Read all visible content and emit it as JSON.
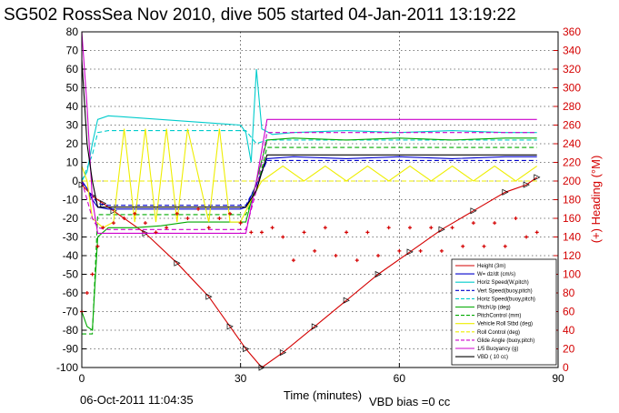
{
  "chart_data": {
    "type": "line",
    "title": "SG502 RossSea Nov 2010, dive 505 started 04-Jan-2011 13:19:22",
    "xlabel": "Time (minutes)",
    "ylabel": "",
    "ylabel_right": "(+) Heading (°M)",
    "xlim": [
      0,
      90
    ],
    "ylim": [
      -100,
      80
    ],
    "ylim_right": [
      0,
      360
    ],
    "xticks": [
      "0",
      "30",
      "60",
      "90"
    ],
    "yticks": [
      "-100",
      "-90",
      "-80",
      "-70",
      "-60",
      "-50",
      "-40",
      "-30",
      "-20",
      "-10",
      "0",
      "10",
      "20",
      "30",
      "40",
      "50",
      "60",
      "70",
      "80"
    ],
    "yticks_right": [
      "0",
      "20",
      "40",
      "60",
      "80",
      "100",
      "120",
      "140",
      "160",
      "180",
      "200",
      "220",
      "240",
      "260",
      "280",
      "300",
      "320",
      "340",
      "360"
    ],
    "grid": true,
    "legend_position": "bottom-right",
    "footer_left": "06-Oct-2011 11:04:35",
    "footer_right": "VBD bias =0 cc",
    "series": [
      {
        "name": "Height (3m)",
        "color": "#d40000",
        "style": "solid",
        "x": [
          0,
          2,
          4,
          6,
          12,
          18,
          24,
          28,
          31,
          34,
          38,
          44,
          50,
          56,
          62,
          68,
          74,
          80,
          84,
          86
        ],
        "y": [
          -2,
          -8,
          -12,
          -16,
          -28,
          -44,
          -62,
          -78,
          -90,
          -100,
          -92,
          -78,
          -64,
          -50,
          -38,
          -26,
          -16,
          -6,
          -2,
          2
        ]
      },
      {
        "name": "W= dz/dt (cm/s)",
        "color": "#0000cc",
        "style": "solid",
        "x": [
          0,
          1,
          2,
          3,
          5,
          10,
          20,
          30,
          31,
          33,
          35,
          40,
          50,
          60,
          70,
          80,
          86
        ],
        "y": [
          0,
          -4,
          -10,
          -14,
          -15,
          -15,
          -15,
          -15,
          -14,
          -2,
          12,
          13,
          12,
          13,
          12,
          13,
          13
        ]
      },
      {
        "name": "Horiz Speed(W,pitch)",
        "color": "#00cccc",
        "style": "solid",
        "x": [
          0,
          1,
          2,
          3,
          5,
          10,
          20,
          30,
          31,
          32,
          33,
          34,
          36,
          40,
          50,
          60,
          70,
          80,
          86
        ],
        "y": [
          0,
          5,
          20,
          33,
          35,
          34,
          32,
          30,
          26,
          10,
          60,
          28,
          25,
          26,
          27,
          26,
          27,
          26,
          26
        ]
      },
      {
        "name": "Vert Speed(buoy,pitch)",
        "color": "#0000cc",
        "style": "dashed",
        "x": [
          0,
          2,
          3,
          5,
          10,
          20,
          30,
          31,
          33,
          35,
          40,
          50,
          60,
          70,
          80,
          86
        ],
        "y": [
          0,
          -8,
          -12,
          -13,
          -13,
          -13,
          -13,
          -13,
          -2,
          11,
          11,
          11,
          11,
          11,
          11,
          11
        ]
      },
      {
        "name": "Horiz Speed(buoy,pitch)",
        "color": "#00cccc",
        "style": "dashed",
        "x": [
          0,
          2,
          3,
          5,
          10,
          20,
          30,
          31,
          33,
          35,
          40,
          50,
          60,
          70,
          80,
          86
        ],
        "y": [
          0,
          14,
          26,
          27,
          27,
          27,
          27,
          27,
          20,
          22,
          22,
          22,
          22,
          22,
          22,
          22
        ]
      },
      {
        "name": "PitchUp (deg)",
        "color": "#00aa00",
        "style": "solid",
        "x": [
          0,
          1,
          2,
          3,
          5,
          10,
          15,
          20,
          25,
          30,
          31,
          33,
          35,
          40,
          50,
          60,
          70,
          80,
          86
        ],
        "y": [
          -70,
          -78,
          -80,
          -30,
          -25,
          -25,
          -24,
          -22,
          -22,
          -22,
          -22,
          0,
          22,
          23,
          22,
          23,
          22,
          23,
          23
        ]
      },
      {
        "name": "PitchControl (mm)",
        "color": "#00aa00",
        "style": "dashed",
        "x": [
          0,
          2,
          3,
          5,
          10,
          20,
          30,
          31,
          33,
          35,
          40,
          50,
          60,
          70,
          80,
          86
        ],
        "y": [
          -82,
          -82,
          -18,
          -18,
          -18,
          -18,
          -18,
          -18,
          -5,
          18,
          18,
          18,
          18,
          18,
          18,
          18
        ]
      },
      {
        "name": "Vehicle Roll Stbd (deg)",
        "color": "#eeee00",
        "style": "solid",
        "x": [
          0,
          1,
          2,
          4,
          6,
          8,
          10,
          12,
          14,
          16,
          18,
          20,
          24,
          26,
          28,
          30,
          32,
          34,
          38,
          42,
          46,
          50,
          54,
          58,
          62,
          66,
          70,
          74,
          78,
          82,
          86
        ],
        "y": [
          8,
          0,
          -20,
          -25,
          -22,
          28,
          -22,
          28,
          -22,
          28,
          -22,
          28,
          -22,
          28,
          -22,
          -22,
          -10,
          0,
          8,
          0,
          8,
          0,
          8,
          0,
          8,
          0,
          8,
          0,
          8,
          0,
          8
        ]
      },
      {
        "name": "Roll Control (deg)",
        "color": "#eeee00",
        "style": "dashed",
        "x": [
          0,
          2,
          3,
          5,
          10,
          20,
          30,
          31,
          33,
          35,
          40,
          50,
          60,
          70,
          80,
          86
        ],
        "y": [
          0,
          0,
          0,
          0,
          0,
          0,
          0,
          0,
          0,
          0,
          0,
          0,
          0,
          0,
          0,
          0
        ]
      },
      {
        "name": "Glide Angle (buoy,pitch)",
        "color": "#cc00cc",
        "style": "dashed",
        "x": [
          0,
          2,
          3,
          5,
          10,
          20,
          30,
          31,
          33,
          35,
          40,
          50,
          60,
          70,
          80,
          86
        ],
        "y": [
          0,
          -20,
          -25,
          -26,
          -26,
          -26,
          -26,
          -26,
          -5,
          26,
          26,
          26,
          26,
          26,
          26,
          26
        ]
      },
      {
        "name": "1/5 Buoyancy (g)",
        "color": "#cc00cc",
        "style": "solid",
        "x": [
          0,
          1,
          2,
          3,
          5,
          10,
          20,
          30,
          31,
          33,
          35,
          40,
          50,
          60,
          70,
          80,
          86
        ],
        "y": [
          80,
          40,
          -10,
          -28,
          -28,
          -28,
          -28,
          -28,
          -28,
          0,
          33,
          33,
          33,
          33,
          33,
          33,
          33
        ]
      },
      {
        "name": "VBD ( 10 cc)",
        "color": "#000000",
        "style": "solid",
        "x": [
          0,
          1,
          2,
          3,
          5,
          10,
          20,
          30,
          31,
          33,
          35,
          40,
          50,
          60,
          70,
          80,
          86
        ],
        "y": [
          65,
          20,
          0,
          -14,
          -14,
          -14,
          -14,
          -14,
          -14,
          -5,
          14,
          14,
          14,
          14,
          14,
          14,
          14
        ]
      }
    ],
    "heading": {
      "name": "Heading (°M)",
      "color": "#d40000",
      "axis": "right",
      "style": "markers",
      "x": [
        0,
        1,
        2,
        3,
        4,
        6,
        8,
        10,
        12,
        14,
        16,
        18,
        20,
        22,
        24,
        26,
        28,
        30,
        32,
        34,
        36,
        38,
        40,
        42,
        44,
        46,
        48,
        50,
        52,
        54,
        56,
        58,
        60,
        62,
        64,
        66,
        68,
        70,
        72,
        74,
        76,
        78,
        80,
        82,
        84,
        86
      ],
      "y": [
        60,
        80,
        100,
        130,
        150,
        155,
        160,
        165,
        155,
        145,
        150,
        165,
        160,
        170,
        150,
        160,
        165,
        155,
        145,
        145,
        150,
        140,
        115,
        145,
        125,
        150,
        120,
        145,
        115,
        145,
        120,
        150,
        125,
        150,
        125,
        150,
        125,
        150,
        130,
        155,
        130,
        155,
        130,
        160,
        140,
        145
      ]
    }
  }
}
